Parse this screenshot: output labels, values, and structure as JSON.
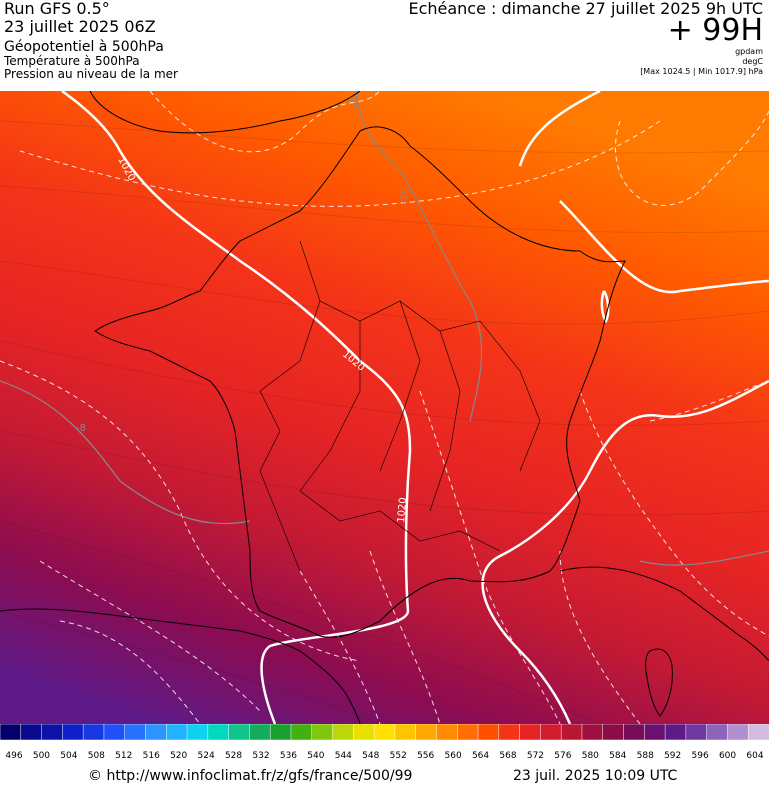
{
  "header": {
    "run": "Run GFS 0.5°",
    "date": "23 juillet 2025 06Z",
    "param1": "Géopotentiel à 500hPa",
    "param2": "Température à 500hPa",
    "param3": "Pression au niveau de la mer",
    "echeance": "Echéance : dimanche 27 juillet 2025 9h UTC",
    "horizon": "+ 99H",
    "unit1": "gpdam",
    "unit2": "degC",
    "minmax": "[Max 1024.5 | Min 1017.9] hPa"
  },
  "map": {
    "isobar_labels": [
      "1020",
      "1020",
      "1020"
    ],
    "isotherm_labels": [
      "-16",
      "-8",
      "-16"
    ],
    "colors": {
      "band_north": "#ff7a00",
      "band_mid": "#f03818",
      "band_south": "#8a1860",
      "band_southwest": "#6a1a8a",
      "isobar": "#ffffff",
      "isotherm": "#888888",
      "border": "#000000"
    }
  },
  "legend": {
    "ticks": [
      "496",
      "500",
      "504",
      "508",
      "512",
      "516",
      "520",
      "524",
      "528",
      "532",
      "536",
      "540",
      "544",
      "548",
      "552",
      "556",
      "560",
      "564",
      "568",
      "572",
      "576",
      "580",
      "584",
      "588",
      "592",
      "596",
      "600",
      "604"
    ],
    "colors": [
      "#06006a",
      "#0a0a8c",
      "#0c14a8",
      "#1020c8",
      "#1838e4",
      "#2050f8",
      "#2872ff",
      "#2c94ff",
      "#20b4ff",
      "#10d0f0",
      "#00d8c0",
      "#10c48c",
      "#12ac5c",
      "#18a030",
      "#44b010",
      "#80c80c",
      "#bcd808",
      "#e8e000",
      "#ffe000",
      "#ffc400",
      "#ffa800",
      "#ff8c00",
      "#ff6e00",
      "#ff5000",
      "#f43418",
      "#e62424",
      "#d01c2c",
      "#b81634",
      "#a0103e",
      "#8c0c48",
      "#780c58",
      "#6a1070",
      "#5e1a88",
      "#6e38a0",
      "#8e64b8",
      "#b090cc",
      "#d4bce0"
    ]
  },
  "footer": {
    "source": "© http://www.infoclimat.fr/z/gfs/france/500/99",
    "generated": "23 juil. 2025 10:09 UTC"
  }
}
